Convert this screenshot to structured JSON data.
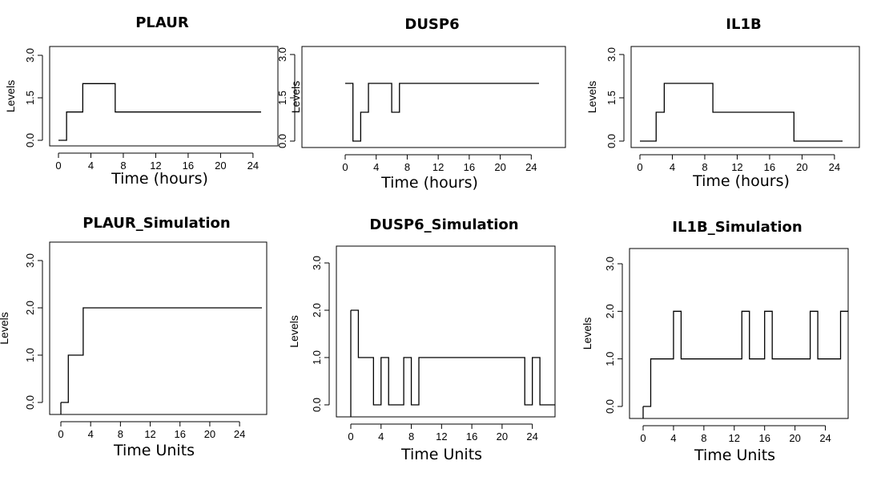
{
  "chart_data": [
    {
      "type": "line",
      "title": "PLAUR",
      "xlabel": "Time (hours)",
      "ylabel": "Levels",
      "xlim": [
        0,
        25
      ],
      "ylim": [
        0,
        3
      ],
      "x_ticks": [
        "0",
        "4",
        "8",
        "12",
        "16",
        "20",
        "24"
      ],
      "y_ticks": [
        "0.0",
        "1.5",
        "3.0"
      ],
      "series": [
        {
          "x": [
            0,
            1,
            3,
            7,
            25
          ],
          "y": [
            0,
            1,
            2,
            1,
            1
          ]
        }
      ]
    },
    {
      "type": "line",
      "title": "DUSP6",
      "xlabel": "Time (hours)",
      "ylabel": "Levels",
      "xlim": [
        0,
        25
      ],
      "ylim": [
        0,
        3
      ],
      "x_ticks": [
        "0",
        "4",
        "8",
        "12",
        "16",
        "20",
        "24"
      ],
      "y_ticks": [
        "0.0",
        "1.5",
        "3.0"
      ],
      "series": [
        {
          "x": [
            0,
            1,
            2,
            3,
            6,
            7,
            25
          ],
          "y": [
            2,
            0,
            1,
            2,
            1,
            2,
            2
          ]
        }
      ]
    },
    {
      "type": "line",
      "title": "IL1B",
      "xlabel": "Time (hours)",
      "ylabel": "Levels",
      "xlim": [
        0,
        25
      ],
      "ylim": [
        0,
        3
      ],
      "x_ticks": [
        "0",
        "4",
        "8",
        "12",
        "16",
        "20",
        "24"
      ],
      "y_ticks": [
        "0.0",
        "1.5",
        "3.0"
      ],
      "series": [
        {
          "x": [
            0,
            2,
            3,
            9,
            19,
            25
          ],
          "y": [
            0,
            1,
            2,
            1,
            0,
            0
          ]
        }
      ]
    },
    {
      "type": "line",
      "title": "PLAUR_Simulation",
      "xlabel": "Time Units",
      "ylabel": "Levels",
      "xlim": [
        0,
        27
      ],
      "ylim": [
        0,
        3
      ],
      "x_ticks": [
        "0",
        "4",
        "8",
        "12",
        "16",
        "20",
        "24"
      ],
      "y_ticks": [
        "0.0",
        "1.0",
        "2.0",
        "3.0"
      ],
      "series": [
        {
          "x": [
            0,
            1,
            3,
            27
          ],
          "y": [
            0,
            1,
            2,
            2
          ]
        }
      ]
    },
    {
      "type": "line",
      "title": "DUSP6_Simulation",
      "xlabel": "Time Units",
      "ylabel": "Levels",
      "xlim": [
        0,
        27
      ],
      "ylim": [
        0,
        3
      ],
      "x_ticks": [
        "0",
        "4",
        "8",
        "12",
        "16",
        "20",
        "24"
      ],
      "y_ticks": [
        "0.0",
        "1.0",
        "2.0",
        "3.0"
      ],
      "series": [
        {
          "x": [
            0,
            1,
            3,
            4,
            5,
            7,
            8,
            9,
            23,
            24,
            25,
            27
          ],
          "y": [
            2,
            1,
            0,
            1,
            0,
            1,
            0,
            1,
            0,
            1,
            0,
            0
          ]
        }
      ]
    },
    {
      "type": "line",
      "title": "IL1B_Simulation",
      "xlabel": "Time Units",
      "ylabel": "Levels",
      "xlim": [
        0,
        27
      ],
      "ylim": [
        0,
        3
      ],
      "x_ticks": [
        "0",
        "4",
        "8",
        "12",
        "16",
        "20",
        "24"
      ],
      "y_ticks": [
        "0.0",
        "1.0",
        "2.0",
        "3.0"
      ],
      "series": [
        {
          "x": [
            0,
            1,
            4,
            5,
            13,
            14,
            16,
            17,
            22,
            23,
            26,
            27
          ],
          "y": [
            0,
            1,
            2,
            1,
            2,
            1,
            2,
            1,
            2,
            1,
            2,
            2
          ]
        }
      ]
    }
  ]
}
